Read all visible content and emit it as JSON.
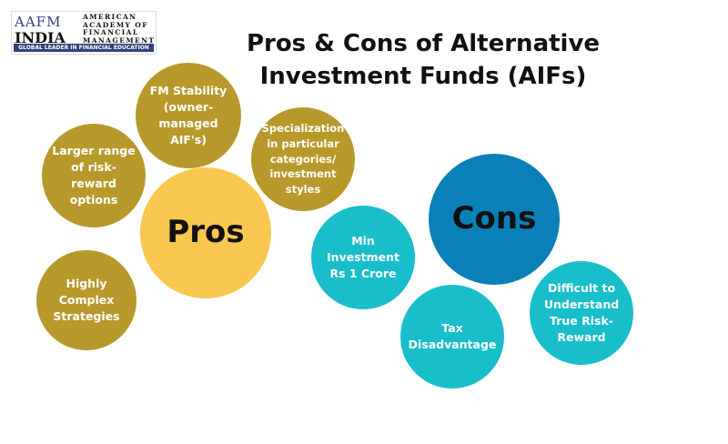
{
  "logo": {
    "letters": "AAFM",
    "country": "INDIA",
    "name": "AMERICAN\nACADEMY OF\nFINANCIAL\nMANAGEMENT",
    "tagline": "GLOBAL LEADER IN FINANCIAL EDUCATION"
  },
  "title": "Pros & Cons of Alternative Investment Funds (AIFs)",
  "pros": {
    "label": "Pros",
    "items": [
      "FM Stability (owner-managed AIF's)",
      "Specialization in particular categories/ investment styles",
      "Larger range of risk-reward options",
      "Highly Complex Strategies"
    ]
  },
  "cons": {
    "label": "Cons",
    "items": [
      "Min Investment Rs 1 Crore",
      "Tax Disadvantage",
      "Difficult to Understand True Risk-Reward"
    ]
  },
  "colors": {
    "pros_hub": "#f9c74f",
    "pros_items": "#b7992b",
    "cons_hub": "#0a80b8",
    "cons_items": "#18bfca"
  }
}
